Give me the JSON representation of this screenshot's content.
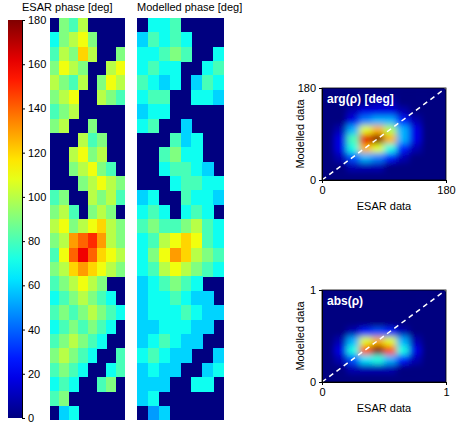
{
  "chart_data": [
    {
      "type": "heatmap",
      "title": "ESAR phase [deg]",
      "colorbar": {
        "range": [
          0,
          180
        ],
        "ticks": [
          0,
          20,
          40,
          60,
          80,
          100,
          120,
          140,
          160,
          180
        ]
      },
      "cells": [
        [
          null,
          90,
          80,
          100,
          null,
          null,
          null,
          null
        ],
        [
          70,
          90,
          100,
          110,
          90,
          null,
          null,
          null
        ],
        [
          80,
          100,
          90,
          120,
          100,
          null,
          null,
          90
        ],
        [
          90,
          110,
          100,
          90,
          null,
          null,
          100,
          110
        ],
        [
          100,
          90,
          80,
          100,
          null,
          90,
          110,
          100
        ],
        [
          90,
          100,
          110,
          null,
          null,
          100,
          90,
          80
        ],
        [
          80,
          90,
          100,
          null,
          null,
          null,
          null,
          null
        ],
        [
          90,
          100,
          null,
          null,
          90,
          null,
          null,
          null
        ],
        [
          null,
          null,
          null,
          100,
          80,
          90,
          null,
          null
        ],
        [
          null,
          null,
          100,
          110,
          90,
          100,
          null,
          null
        ],
        [
          null,
          null,
          90,
          100,
          110,
          90,
          80,
          null
        ],
        [
          null,
          null,
          null,
          90,
          100,
          110,
          100,
          90
        ],
        [
          80,
          90,
          null,
          null,
          100,
          90,
          100,
          80
        ],
        [
          90,
          100,
          80,
          null,
          90,
          100,
          90,
          null
        ],
        [
          100,
          110,
          90,
          100,
          110,
          120,
          100,
          90
        ],
        [
          90,
          100,
          130,
          140,
          150,
          130,
          100,
          90
        ],
        [
          80,
          110,
          140,
          160,
          140,
          120,
          110,
          100
        ],
        [
          90,
          100,
          120,
          130,
          120,
          110,
          100,
          90
        ],
        [
          80,
          90,
          100,
          110,
          100,
          90,
          null,
          null
        ],
        [
          70,
          80,
          90,
          100,
          90,
          80,
          70,
          null
        ],
        [
          80,
          90,
          80,
          90,
          100,
          90,
          80,
          70
        ],
        [
          70,
          80,
          90,
          80,
          90,
          80,
          70,
          null
        ],
        [
          80,
          90,
          100,
          90,
          80,
          70,
          null,
          null
        ],
        [
          90,
          100,
          90,
          80,
          70,
          null,
          null,
          80
        ],
        [
          80,
          90,
          80,
          70,
          null,
          null,
          70,
          80
        ],
        [
          70,
          80,
          70,
          null,
          null,
          80,
          90,
          null
        ],
        [
          80,
          90,
          null,
          null,
          null,
          null,
          null,
          null
        ],
        [
          null,
          60,
          70,
          null,
          null,
          null,
          null,
          null
        ]
      ]
    },
    {
      "type": "heatmap",
      "title": "Modelled phase [deg]",
      "cells": [
        [
          null,
          70,
          70,
          80,
          null,
          null,
          null,
          null
        ],
        [
          60,
          80,
          70,
          80,
          70,
          null,
          null,
          null
        ],
        [
          70,
          70,
          80,
          90,
          80,
          null,
          null,
          70
        ],
        [
          70,
          80,
          70,
          70,
          null,
          null,
          70,
          80
        ],
        [
          80,
          70,
          60,
          70,
          null,
          60,
          80,
          70
        ],
        [
          70,
          80,
          80,
          null,
          null,
          70,
          70,
          60
        ],
        [
          60,
          70,
          70,
          null,
          null,
          null,
          null,
          null
        ],
        [
          70,
          80,
          null,
          null,
          60,
          null,
          null,
          null
        ],
        [
          null,
          null,
          null,
          80,
          60,
          70,
          null,
          null
        ],
        [
          null,
          null,
          80,
          90,
          70,
          70,
          null,
          null
        ],
        [
          null,
          null,
          70,
          80,
          80,
          70,
          60,
          null
        ],
        [
          null,
          null,
          null,
          70,
          80,
          80,
          70,
          70
        ],
        [
          60,
          70,
          null,
          null,
          80,
          70,
          70,
          60
        ],
        [
          70,
          80,
          70,
          null,
          70,
          80,
          70,
          null
        ],
        [
          80,
          90,
          80,
          80,
          90,
          100,
          80,
          70
        ],
        [
          70,
          80,
          100,
          110,
          120,
          110,
          80,
          70
        ],
        [
          70,
          90,
          110,
          130,
          120,
          100,
          90,
          80
        ],
        [
          70,
          80,
          100,
          110,
          100,
          90,
          80,
          70
        ],
        [
          60,
          70,
          80,
          90,
          80,
          70,
          null,
          null
        ],
        [
          60,
          70,
          70,
          80,
          70,
          60,
          60,
          null
        ],
        [
          60,
          70,
          70,
          70,
          80,
          70,
          60,
          60
        ],
        [
          60,
          60,
          70,
          70,
          70,
          60,
          60,
          null
        ],
        [
          60,
          70,
          80,
          70,
          60,
          60,
          null,
          null
        ],
        [
          70,
          80,
          70,
          60,
          60,
          null,
          null,
          60
        ],
        [
          60,
          70,
          60,
          60,
          null,
          null,
          60,
          70
        ],
        [
          60,
          60,
          60,
          null,
          null,
          70,
          70,
          null
        ],
        [
          60,
          70,
          null,
          null,
          null,
          null,
          null,
          null
        ],
        [
          null,
          50,
          60,
          null,
          null,
          null,
          null,
          null
        ]
      ]
    },
    {
      "type": "density",
      "annotation": "arg(ρ) [deg]",
      "x_label": "ESAR data",
      "y_label": "Modelled data",
      "xlim": [
        0,
        180
      ],
      "ylim": [
        0,
        180
      ],
      "xticks": [
        0,
        180
      ],
      "yticks": [
        0,
        180
      ],
      "x_bins": [
        0,
        18,
        36,
        54,
        72,
        90,
        108,
        126,
        144,
        162,
        180
      ],
      "y_bins": [
        0,
        18,
        36,
        54,
        72,
        90,
        108,
        126,
        144,
        162,
        180
      ],
      "density": [
        [
          0,
          0,
          0,
          0,
          0,
          0,
          0,
          0,
          0,
          0
        ],
        [
          0,
          0,
          0.05,
          0.05,
          0.05,
          0,
          0,
          0,
          0,
          0
        ],
        [
          0,
          0.05,
          0.2,
          0.3,
          0.25,
          0.15,
          0.05,
          0,
          0,
          0
        ],
        [
          0,
          0.1,
          0.4,
          0.7,
          0.6,
          0.4,
          0.15,
          0.05,
          0,
          0
        ],
        [
          0,
          0.1,
          0.45,
          0.9,
          1,
          0.7,
          0.3,
          0.1,
          0,
          0
        ],
        [
          0,
          0.05,
          0.3,
          0.6,
          0.7,
          0.55,
          0.3,
          0.1,
          0,
          0
        ],
        [
          0,
          0,
          0.1,
          0.25,
          0.3,
          0.3,
          0.15,
          0.05,
          0,
          0
        ],
        [
          0,
          0,
          0.05,
          0.1,
          0.1,
          0.1,
          0.05,
          0,
          0,
          0
        ],
        [
          0,
          0,
          0,
          0,
          0.05,
          0.05,
          0,
          0,
          0,
          0
        ],
        [
          0,
          0,
          0,
          0,
          0,
          0,
          0,
          0,
          0,
          0
        ]
      ]
    },
    {
      "type": "density",
      "annotation": "abs(ρ)",
      "x_label": "ESAR data",
      "y_label": "Modelled data",
      "xlim": [
        0,
        1
      ],
      "ylim": [
        0,
        1
      ],
      "xticks": [
        0,
        1
      ],
      "yticks": [
        0,
        1
      ],
      "x_bins": [
        0,
        0.1,
        0.2,
        0.3,
        0.4,
        0.5,
        0.6,
        0.7,
        0.8,
        0.9,
        1
      ],
      "y_bins": [
        0,
        0.1,
        0.2,
        0.3,
        0.4,
        0.5,
        0.6,
        0.7,
        0.8,
        0.9,
        1
      ],
      "density": [
        [
          0,
          0,
          0,
          0,
          0,
          0,
          0,
          0,
          0,
          0
        ],
        [
          0,
          0,
          0.05,
          0.05,
          0.05,
          0.05,
          0,
          0,
          0,
          0
        ],
        [
          0,
          0.05,
          0.2,
          0.35,
          0.4,
          0.3,
          0.15,
          0.05,
          0,
          0
        ],
        [
          0,
          0.1,
          0.4,
          0.8,
          1,
          0.8,
          0.4,
          0.1,
          0,
          0
        ],
        [
          0,
          0.05,
          0.3,
          0.6,
          0.7,
          0.6,
          0.3,
          0.05,
          0,
          0
        ],
        [
          0,
          0,
          0.05,
          0.15,
          0.2,
          0.15,
          0.05,
          0,
          0,
          0
        ],
        [
          0,
          0,
          0,
          0,
          0,
          0,
          0,
          0,
          0,
          0
        ],
        [
          0,
          0,
          0,
          0,
          0,
          0,
          0,
          0,
          0,
          0
        ],
        [
          0,
          0,
          0,
          0,
          0,
          0,
          0,
          0,
          0,
          0
        ],
        [
          0,
          0,
          0,
          0,
          0,
          0,
          0,
          0,
          0,
          0
        ]
      ]
    }
  ]
}
